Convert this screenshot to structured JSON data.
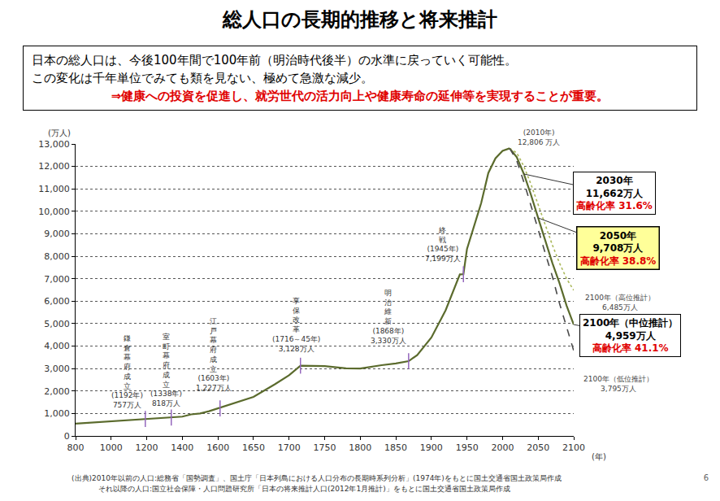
{
  "header": {
    "summary": [
      "日本の総人口は、今後100年間で100年前（明治時代後半）の水準に戻っていく可能性。",
      "この変化は千年単位でみても類を見ない、極めて急激な減少。"
    ],
    "emphasis": "⇒健康への投資を促進し、就労世代の活力向上や健康寿命の延伸等を実現することが重要。"
  },
  "footer": {
    "source": [
      "(出典)2010年以前の人口:総務省「国勢調査」、国土庁「日本列島における人口分布の長期時系列分析」(1974年)をもとに国土交通省国土政策局作成",
      "それ以降の人口:国立社会保障・人口問題研究所「日本の将来推計人口(2012年1月推計)」をもとに国土交通省国土政策局作成"
    ],
    "page": "6"
  },
  "chart_data": {
    "type": "line",
    "title": "総人口の長期的推移と将来推計",
    "ylabel": "(万人)",
    "xlabel": "(年)",
    "xlim": [
      800,
      2100
    ],
    "xticks": [
      800,
      1000,
      1200,
      1400,
      1600,
      1650,
      1700,
      1750,
      1800,
      1850,
      1900,
      1950,
      2000,
      2050,
      2100
    ],
    "ylim": [
      0,
      13000
    ],
    "yticks": [
      0,
      {
        "value": 1000,
        "label": "1,000"
      },
      {
        "value": 2000,
        "label": "2,000"
      },
      {
        "value": 3000,
        "label": "3,000"
      },
      {
        "value": 4000,
        "label": "4,000"
      },
      {
        "value": 5000,
        "label": "5,000"
      },
      {
        "value": 6000,
        "label": "6,000"
      },
      {
        "value": 7000,
        "label": "7,000"
      },
      {
        "value": 8000,
        "label": "8,000"
      },
      {
        "value": 9000,
        "label": "9,000"
      },
      {
        "value": 10000,
        "label": "10,000"
      },
      {
        "value": 11000,
        "label": "11,000"
      },
      {
        "value": 12000,
        "label": "12,000"
      },
      {
        "value": 13000,
        "label": "13,000"
      }
    ],
    "grid": true,
    "series": [
      {
        "color": "#5b6b2d",
        "line_style": "solid",
        "x": [
          800,
          900,
          1000,
          1100,
          1192,
          1250,
          1338,
          1400,
          1450,
          1500,
          1550,
          1600,
          1650,
          1680,
          1700,
          1716,
          1750,
          1780,
          1800,
          1830,
          1850,
          1868,
          1880,
          1900,
          1920,
          1940,
          1945,
          1950,
          1960,
          1970,
          1980,
          1990,
          2000,
          2010
        ],
        "values": [
          550,
          600,
          650,
          700,
          757,
          790,
          818,
          860,
          960,
          1000,
          1100,
          1227,
          1740,
          2300,
          2700,
          3128,
          3110,
          3010,
          3000,
          3150,
          3230,
          3330,
          3600,
          4385,
          5596,
          7193,
          7199,
          8320,
          9342,
          10372,
          11706,
          12361,
          12693,
          12806
        ]
      },
      {
        "color": "#5b6b2d",
        "line_style": "solid",
        "x": [
          2010,
          2020,
          2030,
          2040,
          2050,
          2060,
          2070,
          2080,
          2090,
          2100
        ],
        "values": [
          12806,
          12410,
          11662,
          10728,
          9708,
          8674,
          7700,
          6800,
          5800,
          4959
        ]
      },
      {
        "color": "#aab85a",
        "line_style": "dotted",
        "x": [
          2010,
          2020,
          2030,
          2040,
          2050,
          2060,
          2070,
          2080,
          2090,
          2100
        ],
        "values": [
          12806,
          12600,
          12000,
          11200,
          10300,
          9400,
          8500,
          7700,
          7000,
          6485
        ]
      },
      {
        "color": "#4a4a4a",
        "line_style": "dashed",
        "x": [
          2010,
          2020,
          2030,
          2040,
          2050,
          2060,
          2070,
          2080,
          2090,
          2100
        ],
        "values": [
          12806,
          12250,
          11300,
          10200,
          9193,
          8135,
          7100,
          5900,
          4800,
          3795
        ]
      }
    ],
    "events": [
      {
        "label": "鎌倉幕府成立",
        "period": "(1192年)",
        "x": 1192,
        "y": 757,
        "value_label": "757万人"
      },
      {
        "label": "室町幕府成立",
        "period": "(1338年)",
        "x": 1338,
        "y": 818,
        "value_label": "818万人"
      },
      {
        "label": "江戸幕府成立",
        "period": "(1603年)",
        "x": 1603,
        "y": 1227,
        "value_label": "1,227万人"
      },
      {
        "label": "享保改革",
        "period": "(1716～45年)",
        "x": 1716,
        "y": 3128,
        "value_label": "3,128万人"
      },
      {
        "label": "明治維新",
        "period": "(1868年)",
        "x": 1868,
        "y": 3330,
        "value_label": "3,330万人"
      },
      {
        "label": "終戦",
        "period": "(1945年)",
        "x": 1945,
        "y": 7199,
        "value_label": "7,199万人"
      }
    ],
    "callouts": [
      {
        "x": 2010,
        "y": 12806,
        "lines": [
          "(2010年)",
          "12,806 万人"
        ]
      },
      {
        "x": 2030,
        "y": 11662,
        "lines": [
          "2030年",
          "11,662万人"
        ],
        "note": "高齢化率 31.6%",
        "color": "#ffffff"
      },
      {
        "x": 2050,
        "y": 9708,
        "lines": [
          "2050年",
          "9,708万人"
        ],
        "note": "高齢化率 38.8%",
        "color": "#ffff99"
      },
      {
        "x": 2100,
        "y": 4959,
        "lines": [
          "2100年（中位推計）",
          "4,959万人"
        ],
        "note": "高齢化率 41.1%",
        "color": "#ffffff"
      },
      {
        "x": 2100,
        "y": 6485,
        "lines": [
          "2100年（高位推計）",
          "6,485万人"
        ]
      },
      {
        "x": 2100,
        "y": 3795,
        "lines": [
          "2100年（低位推計）",
          "3,795万人"
        ]
      }
    ]
  }
}
